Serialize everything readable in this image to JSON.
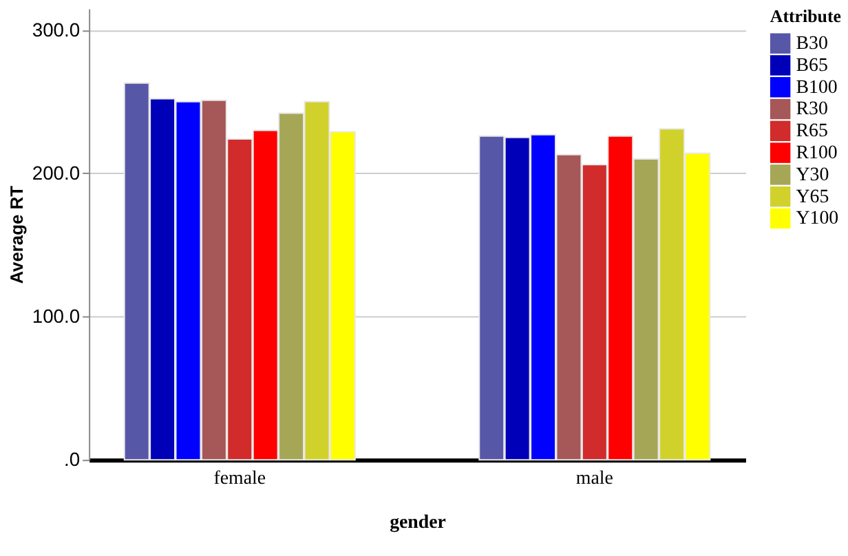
{
  "chart_data": {
    "type": "bar",
    "xlabel": "gender",
    "ylabel": "Average RT",
    "legend_title": "Attribute",
    "categories": [
      "female",
      "male"
    ],
    "series": [
      {
        "name": "B30",
        "color": "#5757a8",
        "values": [
          263,
          226
        ]
      },
      {
        "name": "B65",
        "color": "#0000b8",
        "values": [
          252,
          225
        ]
      },
      {
        "name": "B100",
        "color": "#0000ff",
        "values": [
          250,
          227
        ]
      },
      {
        "name": "R30",
        "color": "#a65757",
        "values": [
          251,
          213
        ]
      },
      {
        "name": "R65",
        "color": "#d12b2b",
        "values": [
          224,
          206
        ]
      },
      {
        "name": "R100",
        "color": "#ff0000",
        "values": [
          230,
          226
        ]
      },
      {
        "name": "Y30",
        "color": "#a6a657",
        "values": [
          242,
          210
        ]
      },
      {
        "name": "Y65",
        "color": "#d1d12b",
        "values": [
          250,
          231
        ]
      },
      {
        "name": "Y100",
        "color": "#ffff00",
        "values": [
          229,
          214
        ]
      }
    ],
    "ylim": [
      0,
      315
    ],
    "yticks": [
      {
        "value": 0,
        "label": ".0"
      },
      {
        "value": 100,
        "label": "100.0"
      },
      {
        "value": 200,
        "label": "200.0"
      },
      {
        "value": 300,
        "label": "300.0"
      }
    ],
    "grid": "y",
    "legend": "top right"
  }
}
